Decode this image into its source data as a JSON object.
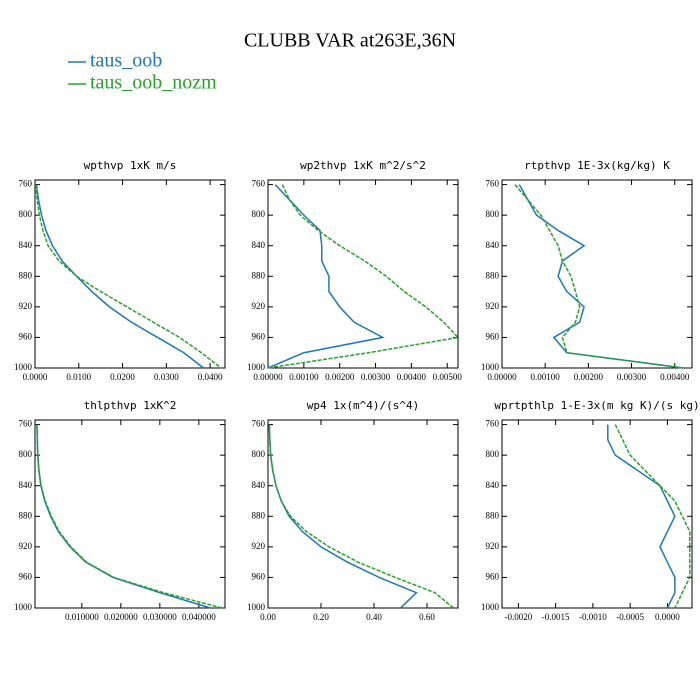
{
  "title": "CLUBB VAR at263E,36N",
  "chart_data": [
    {
      "type": "line",
      "title": "wpthvp   1xK m/s",
      "y": [
        760,
        780,
        800,
        820,
        840,
        860,
        880,
        900,
        920,
        940,
        960,
        980,
        1000
      ],
      "ylim": [
        1000,
        754
      ],
      "yticks": [
        760,
        800,
        840,
        880,
        920,
        960,
        1000
      ],
      "xlim": [
        0,
        0.0434
      ],
      "xticks": [
        {
          "value": 0,
          "label": "0.0000"
        },
        {
          "value": 0.01,
          "label": "0.0100"
        },
        {
          "value": 0.02,
          "label": "0.0200"
        },
        {
          "value": 0.03,
          "label": "0.0300"
        },
        {
          "value": 0.04,
          "label": "0.0400"
        }
      ],
      "series": [
        {
          "name": "taus_oob",
          "color": "#1f77b4",
          "style": "solid",
          "values": [
            0.0003,
            0.0008,
            0.0015,
            0.0025,
            0.004,
            0.0062,
            0.0095,
            0.013,
            0.017,
            0.022,
            0.028,
            0.034,
            0.0385
          ]
        },
        {
          "name": "taus_oob_nozm",
          "color": "#2ca02c",
          "style": "dashed",
          "values": [
            0.0002,
            0.0005,
            0.001,
            0.0018,
            0.003,
            0.0055,
            0.0095,
            0.015,
            0.021,
            0.027,
            0.033,
            0.038,
            0.0425
          ]
        }
      ]
    },
    {
      "type": "line",
      "title": "wp2thvp   1xK m^2/s^2",
      "y": [
        760,
        780,
        800,
        820,
        840,
        860,
        880,
        900,
        920,
        940,
        960,
        980,
        1000
      ],
      "ylim": [
        1000,
        754
      ],
      "yticks": [
        760,
        800,
        840,
        880,
        920,
        960,
        1000
      ],
      "xlim": [
        0,
        0.0053
      ],
      "xticks": [
        {
          "value": 0,
          "label": "0.00000"
        },
        {
          "value": 0.001,
          "label": "0.00100"
        },
        {
          "value": 0.002,
          "label": "0.00200"
        },
        {
          "value": 0.003,
          "label": "0.00300"
        },
        {
          "value": 0.004,
          "label": "0.00400"
        },
        {
          "value": 0.005,
          "label": "0.00500"
        }
      ],
      "series": [
        {
          "name": "taus_oob",
          "color": "#1f77b4",
          "style": "solid",
          "values": [
            0.0002,
            0.0006,
            0.001,
            0.00145,
            0.0015,
            0.0015,
            0.0017,
            0.0017,
            0.002,
            0.0024,
            0.0032,
            0.001,
            0
          ]
        },
        {
          "name": "taus_oob_nozm",
          "color": "#2ca02c",
          "style": "dashed",
          "values": [
            0.0004,
            0.0006,
            0.0009,
            0.0014,
            0.002,
            0.0027,
            0.0033,
            0.0038,
            0.0044,
            0.0049,
            0.0053,
            0.0028,
            0
          ]
        }
      ]
    },
    {
      "type": "line",
      "title": "rtpthvp   1E-3x(kg/kg) K",
      "y": [
        760,
        780,
        800,
        820,
        840,
        860,
        880,
        900,
        920,
        940,
        960,
        980,
        1000
      ],
      "ylim": [
        1000,
        754
      ],
      "yticks": [
        760,
        800,
        840,
        880,
        920,
        960,
        1000
      ],
      "xlim": [
        0,
        0.0044
      ],
      "xticks": [
        {
          "value": 0,
          "label": "0.00000"
        },
        {
          "value": 0.001,
          "label": "0.00100"
        },
        {
          "value": 0.002,
          "label": "0.00200"
        },
        {
          "value": 0.003,
          "label": "0.00300"
        },
        {
          "value": 0.004,
          "label": "0.00400"
        }
      ],
      "series": [
        {
          "name": "taus_oob",
          "color": "#1f77b4",
          "style": "solid",
          "values": [
            0.0004,
            0.0006,
            0.0008,
            0.0013,
            0.0019,
            0.0014,
            0.0013,
            0.0015,
            0.0019,
            0.0018,
            0.0012,
            0.0015,
            0.0042
          ]
        },
        {
          "name": "taus_oob_nozm",
          "color": "#2ca02c",
          "style": "dashed",
          "values": [
            0.0003,
            0.0006,
            0.0009,
            0.0011,
            0.0013,
            0.0014,
            0.0016,
            0.0017,
            0.0018,
            0.0017,
            0.0014,
            0.0015,
            0.0042
          ]
        }
      ]
    },
    {
      "type": "line",
      "title": "thlpthvp   1xK^2",
      "y": [
        760,
        780,
        800,
        820,
        840,
        860,
        880,
        900,
        920,
        940,
        960,
        980,
        1000
      ],
      "ylim": [
        1000,
        754
      ],
      "yticks": [
        760,
        800,
        840,
        880,
        920,
        960,
        1000
      ],
      "xlim": [
        -0.002,
        0.0467
      ],
      "xticks": [
        {
          "value": 0.01,
          "label": "0.010000"
        },
        {
          "value": 0.02,
          "label": "0.020000"
        },
        {
          "value": 0.03,
          "label": "0.030000"
        },
        {
          "value": 0.04,
          "label": "0.040000"
        }
      ],
      "series": [
        {
          "name": "taus_oob",
          "color": "#1f77b4",
          "style": "solid",
          "values": [
            -0.0015,
            -0.0014,
            -0.0013,
            -0.001,
            -0.0005,
            0.0005,
            0.002,
            0.004,
            0.007,
            0.011,
            0.018,
            0.03,
            0.043
          ]
        },
        {
          "name": "taus_oob_nozm",
          "color": "#2ca02c",
          "style": "dashed",
          "values": [
            -0.0015,
            -0.0014,
            -0.0013,
            -0.001,
            -0.0004,
            0.0006,
            0.0022,
            0.0042,
            0.0072,
            0.0112,
            0.0182,
            0.031,
            0.046
          ]
        }
      ]
    },
    {
      "type": "line",
      "title": "wp4   1x(m^4)/(s^4)",
      "y": [
        760,
        780,
        800,
        820,
        840,
        860,
        880,
        900,
        920,
        940,
        960,
        980,
        1000
      ],
      "ylim": [
        1000,
        754
      ],
      "yticks": [
        760,
        800,
        840,
        880,
        920,
        960,
        1000
      ],
      "xlim": [
        0,
        0.717
      ],
      "xticks": [
        {
          "value": 0,
          "label": "0.00"
        },
        {
          "value": 0.2,
          "label": "0.20"
        },
        {
          "value": 0.4,
          "label": "0.40"
        },
        {
          "value": 0.6,
          "label": "0.60"
        }
      ],
      "series": [
        {
          "name": "taus_oob",
          "color": "#1f77b4",
          "style": "solid",
          "values": [
            0.005,
            0.007,
            0.01,
            0.018,
            0.03,
            0.05,
            0.08,
            0.13,
            0.2,
            0.3,
            0.42,
            0.56,
            0.5
          ]
        },
        {
          "name": "taus_oob_nozm",
          "color": "#2ca02c",
          "style": "dashed",
          "values": [
            0.005,
            0.007,
            0.01,
            0.018,
            0.03,
            0.05,
            0.085,
            0.145,
            0.23,
            0.34,
            0.48,
            0.63,
            0.7
          ]
        }
      ]
    },
    {
      "type": "line",
      "title": "wprtpthlp   1-E-3x(m kg K)/(s kg)",
      "y": [
        760,
        780,
        800,
        820,
        840,
        860,
        880,
        900,
        920,
        940,
        960,
        980,
        1000
      ],
      "ylim": [
        1000,
        754
      ],
      "yticks": [
        760,
        800,
        840,
        880,
        920,
        960,
        1000
      ],
      "xlim": [
        -0.00222,
        0.00033
      ],
      "xticks": [
        {
          "value": -0.002,
          "label": "-0.0020"
        },
        {
          "value": -0.0015,
          "label": "-0.0015"
        },
        {
          "value": -0.001,
          "label": "-0.0010"
        },
        {
          "value": -0.0005,
          "label": "-0.0005"
        },
        {
          "value": 0,
          "label": "0.0000"
        }
      ],
      "series": [
        {
          "name": "taus_oob",
          "color": "#1f77b4",
          "style": "solid",
          "values": [
            -0.0008,
            -0.0008,
            -0.0007,
            -0.0004,
            -0.0001,
            0,
            0.0001,
            0,
            -0.0001,
            0,
            0.0001,
            0.0001,
            0
          ]
        },
        {
          "name": "taus_oob_nozm",
          "color": "#2ca02c",
          "style": "dashed",
          "values": [
            -0.0007,
            -0.0006,
            -0.0005,
            -0.0003,
            -0.0001,
            0.0001,
            0.0002,
            0.0003,
            0.0003,
            0.0003,
            0.0003,
            0.0002,
            0.0001
          ]
        }
      ]
    }
  ]
}
